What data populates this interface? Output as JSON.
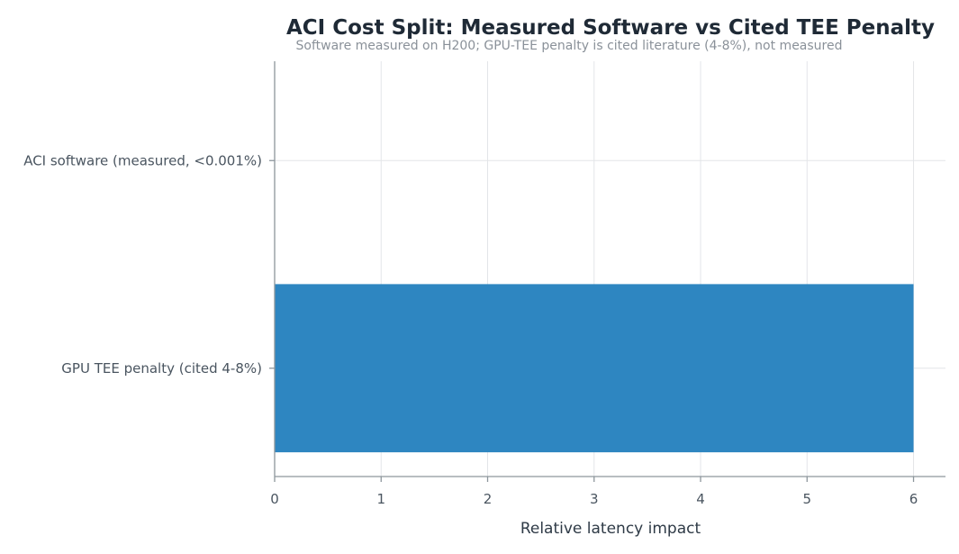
{
  "chart_data": {
    "type": "bar",
    "orientation": "horizontal",
    "title": "ACI Cost Split: Measured Software vs Cited TEE Penalty",
    "subtitle": "Software measured on H200; GPU-TEE penalty is cited literature (4-8%), not measured",
    "categories": [
      "ACI software (measured, <0.001%)",
      "GPU TEE penalty (cited 4-8%)"
    ],
    "values": [
      1e-05,
      6
    ],
    "xlabel": "Relative latency impact",
    "ylabel": "",
    "xlim": [
      0,
      6.3
    ],
    "xticks": [
      "0",
      "1",
      "2",
      "3",
      "4",
      "5",
      "6"
    ],
    "grid": true,
    "bar_color": "#2e86c1"
  }
}
